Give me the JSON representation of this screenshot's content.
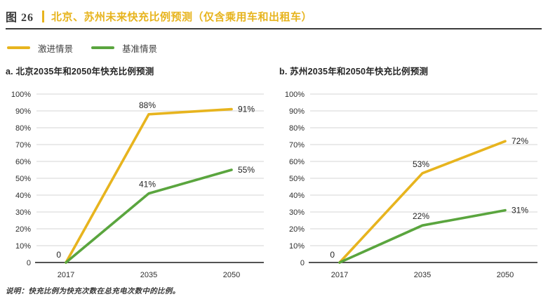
{
  "figure": {
    "label": "图 26",
    "title": "北京、苏州未来快充比例预测（仅含乘用车和出租车）"
  },
  "legend": {
    "items": [
      {
        "label": "激进情景",
        "color": "#e7b41e"
      },
      {
        "label": "基准情景",
        "color": "#5aa53e"
      }
    ]
  },
  "chart_data": [
    {
      "type": "line",
      "title": "a. 北京2035年和2050年快充比例预测",
      "categories": [
        "2017",
        "2035",
        "2050"
      ],
      "series": [
        {
          "name": "激进情景",
          "color": "#e7b41e",
          "values": [
            0,
            88,
            91
          ],
          "point_labels": [
            "0",
            "88%",
            "91%"
          ]
        },
        {
          "name": "基准情景",
          "color": "#5aa53e",
          "values": [
            0,
            41,
            55
          ],
          "point_labels": [
            "",
            "41%",
            "55%"
          ]
        }
      ],
      "xlabel": "",
      "ylabel": "",
      "ylim": [
        0,
        100
      ],
      "ytick_labels": [
        "0",
        "10%",
        "20%",
        "30%",
        "40%",
        "50%",
        "60%",
        "70%",
        "80%",
        "90%",
        "100%"
      ],
      "grid": true,
      "legend_position": "top-left"
    },
    {
      "type": "line",
      "title": "b. 苏州2035年和2050年快充比例预测",
      "categories": [
        "2017",
        "2035",
        "2050"
      ],
      "series": [
        {
          "name": "激进情景",
          "color": "#e7b41e",
          "values": [
            0,
            53,
            72
          ],
          "point_labels": [
            "0",
            "53%",
            "72%"
          ]
        },
        {
          "name": "基准情景",
          "color": "#5aa53e",
          "values": [
            0,
            22,
            31
          ],
          "point_labels": [
            "",
            "22%",
            "31%"
          ]
        }
      ],
      "xlabel": "",
      "ylabel": "",
      "ylim": [
        0,
        100
      ],
      "ytick_labels": [
        "0",
        "10%",
        "20%",
        "30%",
        "40%",
        "50%",
        "60%",
        "70%",
        "80%",
        "90%",
        "100%"
      ],
      "grid": true,
      "legend_position": "top-left"
    }
  ],
  "footnote": "说明：快充比例为快充次数在总充电次数中的比例。",
  "colors": {
    "grid": "#dedede",
    "axis": "#1a1a1a",
    "accent_gold": "#e7b41e",
    "accent_green": "#5aa53e"
  }
}
